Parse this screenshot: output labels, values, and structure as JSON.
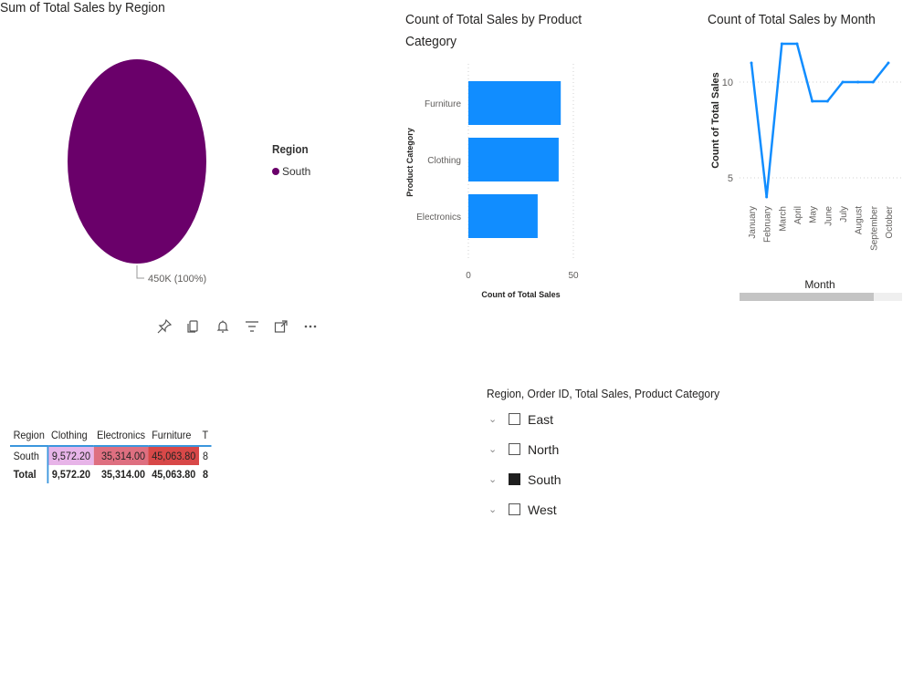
{
  "pie_visual": {
    "title": "Sum of Total Sales by Region",
    "legend_title": "Region",
    "legend_items": [
      {
        "label": "South",
        "color": "#6a006a"
      }
    ],
    "data_label": "450K (100%)"
  },
  "toolbar": {
    "icons": [
      "pin-icon",
      "copy-icon",
      "bell-icon",
      "filter-icon",
      "focus-mode-icon",
      "more-options-icon"
    ]
  },
  "bar_visual": {
    "title_line1": "Count of Total Sales by Product",
    "title_line2": "Category"
  },
  "line_visual": {
    "title": "Count of Total Sales by Month"
  },
  "matrix": {
    "headers": [
      "Region",
      "Clothing",
      "Electronics",
      "Furniture",
      "T"
    ],
    "rows": [
      {
        "cells": [
          "South",
          "9,572.20",
          "35,314.00",
          "45,063.80",
          "8"
        ],
        "colors": [
          "",
          "#e7b4e8",
          "#de6f80",
          "#d84848",
          ""
        ]
      },
      {
        "cells": [
          "Total",
          "9,572.20",
          "35,314.00",
          "45,063.80",
          "8"
        ],
        "colors": [
          "",
          "",
          "",
          "",
          ""
        ]
      }
    ]
  },
  "slicer": {
    "title": "Region, Order ID, Total Sales, Product Category",
    "items": [
      {
        "label": "East",
        "checked": false
      },
      {
        "label": "North",
        "checked": false
      },
      {
        "label": "South",
        "checked": true
      },
      {
        "label": "West",
        "checked": false
      }
    ]
  },
  "chart_data": [
    {
      "type": "pie",
      "title": "Sum of Total Sales by Region",
      "legend_title": "Region",
      "categories": [
        "South"
      ],
      "values": [
        450000
      ],
      "data_labels": [
        "450K (100%)"
      ],
      "colors": [
        "#6a006a"
      ]
    },
    {
      "type": "bar",
      "orientation": "horizontal",
      "title": "Count of Total Sales by Product Category",
      "xlabel": "Count of Total Sales",
      "ylabel": "Product Category",
      "categories": [
        "Furniture",
        "Clothing",
        "Electronics"
      ],
      "values": [
        44,
        43,
        33
      ],
      "xlim": [
        0,
        50
      ],
      "x_ticks": [
        0,
        50
      ],
      "color": "#118dff"
    },
    {
      "type": "line",
      "title": "Count of Total Sales by Month",
      "xlabel": "Month",
      "ylabel": "Count of Total Sales",
      "categories": [
        "January",
        "February",
        "March",
        "April",
        "May",
        "June",
        "July",
        "August",
        "September",
        "October"
      ],
      "values": [
        11,
        4,
        12,
        12,
        9,
        9,
        10,
        10,
        10,
        11
      ],
      "y_ticks": [
        5,
        10
      ],
      "ylim": [
        4,
        12
      ],
      "color": "#118dff"
    }
  ]
}
